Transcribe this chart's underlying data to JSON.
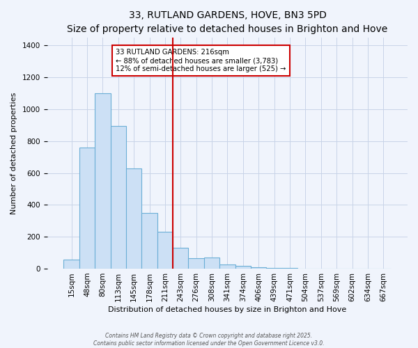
{
  "title": "33, RUTLAND GARDENS, HOVE, BN3 5PD",
  "subtitle": "Size of property relative to detached houses in Brighton and Hove",
  "xlabel": "Distribution of detached houses by size in Brighton and Hove",
  "ylabel": "Number of detached properties",
  "bar_labels": [
    "15sqm",
    "48sqm",
    "80sqm",
    "113sqm",
    "145sqm",
    "178sqm",
    "211sqm",
    "243sqm",
    "276sqm",
    "308sqm",
    "341sqm",
    "374sqm",
    "406sqm",
    "439sqm",
    "471sqm",
    "504sqm",
    "537sqm",
    "569sqm",
    "602sqm",
    "634sqm",
    "667sqm"
  ],
  "bar_values": [
    55,
    760,
    1100,
    893,
    630,
    348,
    232,
    133,
    65,
    70,
    28,
    18,
    8,
    5,
    3,
    2,
    1,
    1,
    0,
    1,
    0
  ],
  "bar_color": "#cce0f5",
  "bar_edge_color": "#6baed6",
  "vline_x_index": 6,
  "vline_color": "#cc0000",
  "annotation_title": "33 RUTLAND GARDENS: 216sqm",
  "annotation_line1": "← 88% of detached houses are smaller (3,783)",
  "annotation_line2": "12% of semi-detached houses are larger (525) →",
  "annotation_box_color": "#cc0000",
  "ylim": [
    0,
    1450
  ],
  "yticks": [
    0,
    200,
    400,
    600,
    800,
    1000,
    1200,
    1400
  ],
  "footer1": "Contains HM Land Registry data © Crown copyright and database right 2025.",
  "footer2": "Contains public sector information licensed under the Open Government Licence v3.0.",
  "bg_color": "#f0f4fc",
  "grid_color": "#c8d4e8",
  "title_fontsize": 10,
  "subtitle_fontsize": 8.5,
  "axis_label_fontsize": 8,
  "tick_fontsize": 7.5
}
